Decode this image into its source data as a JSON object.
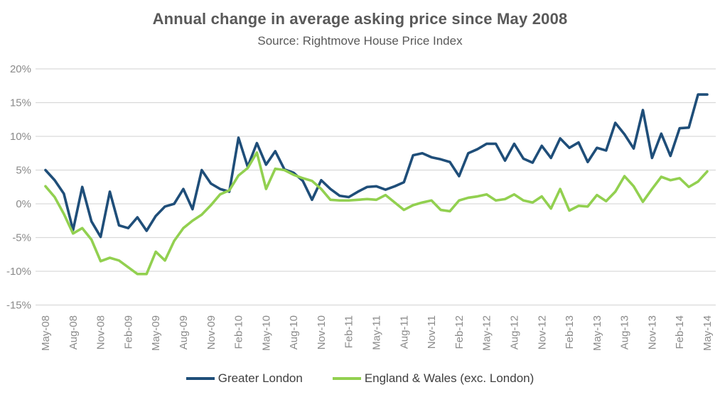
{
  "title": "Annual change in average asking price since May 2008",
  "subtitle": "Source: Rightmove House Price Index",
  "colors": {
    "background": "#FFFFFF",
    "title_text": "#595959",
    "axis_text": "#8A8A8A",
    "legend_text": "#404040",
    "gridline": "#D9D9D9",
    "greater_london_line": "#1F4E79",
    "england_wales_line": "#92D050"
  },
  "legend": {
    "items": [
      {
        "label": "Greater London",
        "color": "#1F4E79"
      },
      {
        "label": "England & Wales (exc. London)",
        "color": "#92D050"
      }
    ]
  },
  "chart_data": {
    "type": "line",
    "title": "Annual change in average asking price since May 2008",
    "subtitle": "Source: Rightmove House Price Index",
    "grid": "horizontal",
    "legend_position": "bottom",
    "ylim": [
      -15,
      20
    ],
    "y_ticks": [
      20,
      15,
      10,
      5,
      0,
      -5,
      -10,
      -15
    ],
    "y_tick_labels": [
      "20%",
      "15%",
      "10%",
      "5%",
      "0%",
      "-5%",
      "-10%",
      "-15%"
    ],
    "x_tick_step": 3,
    "x_tick_labels_shown": [
      "May-08",
      "Aug-08",
      "Nov-08",
      "Feb-09",
      "May-09",
      "Aug-09",
      "Nov-09",
      "Feb-10",
      "May-10",
      "Aug-10",
      "Nov-10",
      "Feb-11",
      "May-11",
      "Aug-11",
      "Nov-11",
      "Feb-12",
      "May-12",
      "Aug-12",
      "Nov-12",
      "Feb-13",
      "May-13",
      "Aug-13",
      "Nov-13",
      "Feb-14",
      "May-14"
    ],
    "x": [
      "May-08",
      "Jun-08",
      "Jul-08",
      "Aug-08",
      "Sep-08",
      "Oct-08",
      "Nov-08",
      "Dec-08",
      "Jan-09",
      "Feb-09",
      "Mar-09",
      "Apr-09",
      "May-09",
      "Jun-09",
      "Jul-09",
      "Aug-09",
      "Sep-09",
      "Oct-09",
      "Nov-09",
      "Dec-09",
      "Jan-10",
      "Feb-10",
      "Mar-10",
      "Apr-10",
      "May-10",
      "Jun-10",
      "Jul-10",
      "Aug-10",
      "Sep-10",
      "Oct-10",
      "Nov-10",
      "Dec-10",
      "Jan-11",
      "Feb-11",
      "Mar-11",
      "Apr-11",
      "May-11",
      "Jun-11",
      "Jul-11",
      "Aug-11",
      "Sep-11",
      "Oct-11",
      "Nov-11",
      "Dec-11",
      "Jan-12",
      "Feb-12",
      "Mar-12",
      "Apr-12",
      "May-12",
      "Jun-12",
      "Jul-12",
      "Aug-12",
      "Sep-12",
      "Oct-12",
      "Nov-12",
      "Dec-12",
      "Jan-13",
      "Feb-13",
      "Mar-13",
      "Apr-13",
      "May-13",
      "Jun-13",
      "Jul-13",
      "Aug-13",
      "Sep-13",
      "Oct-13",
      "Nov-13",
      "Dec-13",
      "Jan-14",
      "Feb-14",
      "Mar-14",
      "Apr-14",
      "May-14"
    ],
    "series": [
      {
        "id": "greater-london",
        "name": "Greater London",
        "color": "#1F4E79",
        "values": [
          5.0,
          3.5,
          1.5,
          -3.9,
          2.5,
          -2.6,
          -4.9,
          1.8,
          -3.2,
          -3.6,
          -2.0,
          -4.0,
          -1.8,
          -0.4,
          0.0,
          2.2,
          -0.8,
          5.0,
          3.0,
          2.2,
          1.8,
          9.8,
          5.5,
          9.0,
          5.8,
          7.8,
          5.1,
          4.6,
          3.4,
          0.6,
          3.5,
          2.2,
          1.2,
          1.0,
          1.8,
          2.5,
          2.6,
          2.1,
          2.6,
          3.2,
          7.2,
          7.5,
          6.9,
          6.6,
          6.2,
          4.1,
          7.5,
          8.1,
          8.9,
          8.9,
          6.4,
          8.9,
          6.7,
          6.1,
          8.6,
          6.8,
          9.7,
          8.3,
          9.1,
          6.2,
          8.3,
          7.9,
          12.0,
          10.3,
          8.2,
          13.9,
          6.8,
          10.4,
          7.1,
          11.2,
          11.3,
          16.2,
          16.2
        ]
      },
      {
        "id": "england-wales-exc-london",
        "name": "England & Wales (exc. London)",
        "color": "#92D050",
        "values": [
          2.6,
          1.0,
          -1.5,
          -4.4,
          -3.6,
          -5.3,
          -8.5,
          -8.0,
          -8.4,
          -9.4,
          -10.4,
          -10.4,
          -7.1,
          -8.4,
          -5.5,
          -3.6,
          -2.5,
          -1.6,
          -0.2,
          1.4,
          2.0,
          4.2,
          5.3,
          7.6,
          2.2,
          5.2,
          5.0,
          4.3,
          3.8,
          3.4,
          2.2,
          0.6,
          0.5,
          0.5,
          0.6,
          0.7,
          0.6,
          1.3,
          0.2,
          -0.9,
          -0.2,
          0.2,
          0.5,
          -0.9,
          -1.1,
          0.5,
          0.9,
          1.1,
          1.4,
          0.5,
          0.7,
          1.4,
          0.5,
          0.2,
          1.1,
          -0.7,
          2.2,
          -1.0,
          -0.3,
          -0.4,
          1.3,
          0.4,
          1.8,
          4.1,
          2.6,
          0.3,
          2.2,
          4.0,
          3.5,
          3.8,
          2.5,
          3.3,
          4.8
        ]
      }
    ]
  }
}
